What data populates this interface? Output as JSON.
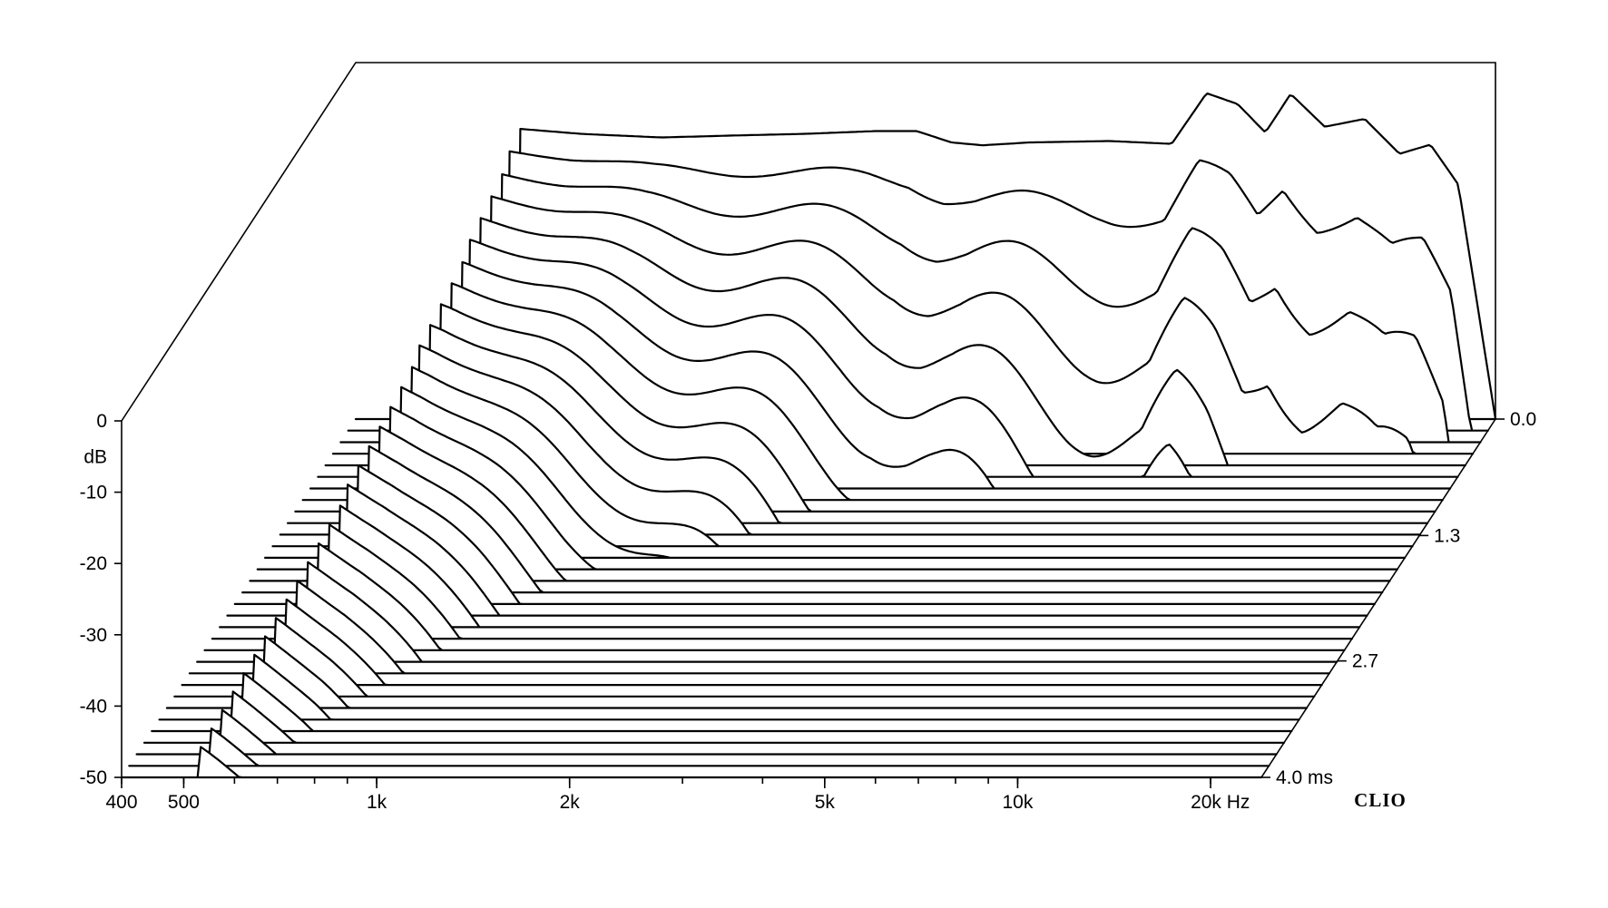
{
  "chart_data": {
    "type": "waterfall",
    "yaxis": {
      "unit_label": "dB",
      "ylim": [
        -50,
        0
      ],
      "ticks": [
        "0",
        "-10",
        "-20",
        "-30",
        "-40",
        "-50"
      ]
    },
    "xaxis": {
      "scale": "log",
      "xlim": [
        400,
        24000
      ],
      "tick_labels": [
        "400",
        "500",
        "1k",
        "2k",
        "5k",
        "10k",
        "20k Hz"
      ],
      "tick_values": [
        400,
        500,
        1000,
        2000,
        5000,
        10000,
        20000
      ]
    },
    "zaxis": {
      "unit": "ms",
      "range": [
        0.0,
        4.0
      ],
      "tick_labels": [
        "0.0",
        "1.3",
        "2.7",
        "4.0  ms"
      ],
      "tick_values": [
        0.0,
        1.3,
        2.7,
        4.0
      ]
    },
    "slices": 32,
    "first_slice_response": {
      "freq_hz": [
        600,
        700,
        900,
        1200,
        1600,
        2000,
        2600,
        3000,
        3400,
        3800,
        4500,
        6000,
        7500,
        8500,
        9500,
        10500,
        11500,
        13000,
        15000,
        17000,
        19000,
        21000,
        24000
      ],
      "db": [
        -9.2,
        -9.2,
        -10.0,
        -10.5,
        -10.2,
        -10.0,
        -9.6,
        -9.6,
        -11.2,
        -11.6,
        -11.2,
        -11.0,
        -11.4,
        -4.3,
        -5.8,
        -9.8,
        -4.4,
        -9.0,
        -7.9,
        -12.8,
        -11.5,
        -17.1,
        -50
      ]
    },
    "grid": false,
    "legend": "none"
  },
  "brand": {
    "logo": "CLIO"
  }
}
